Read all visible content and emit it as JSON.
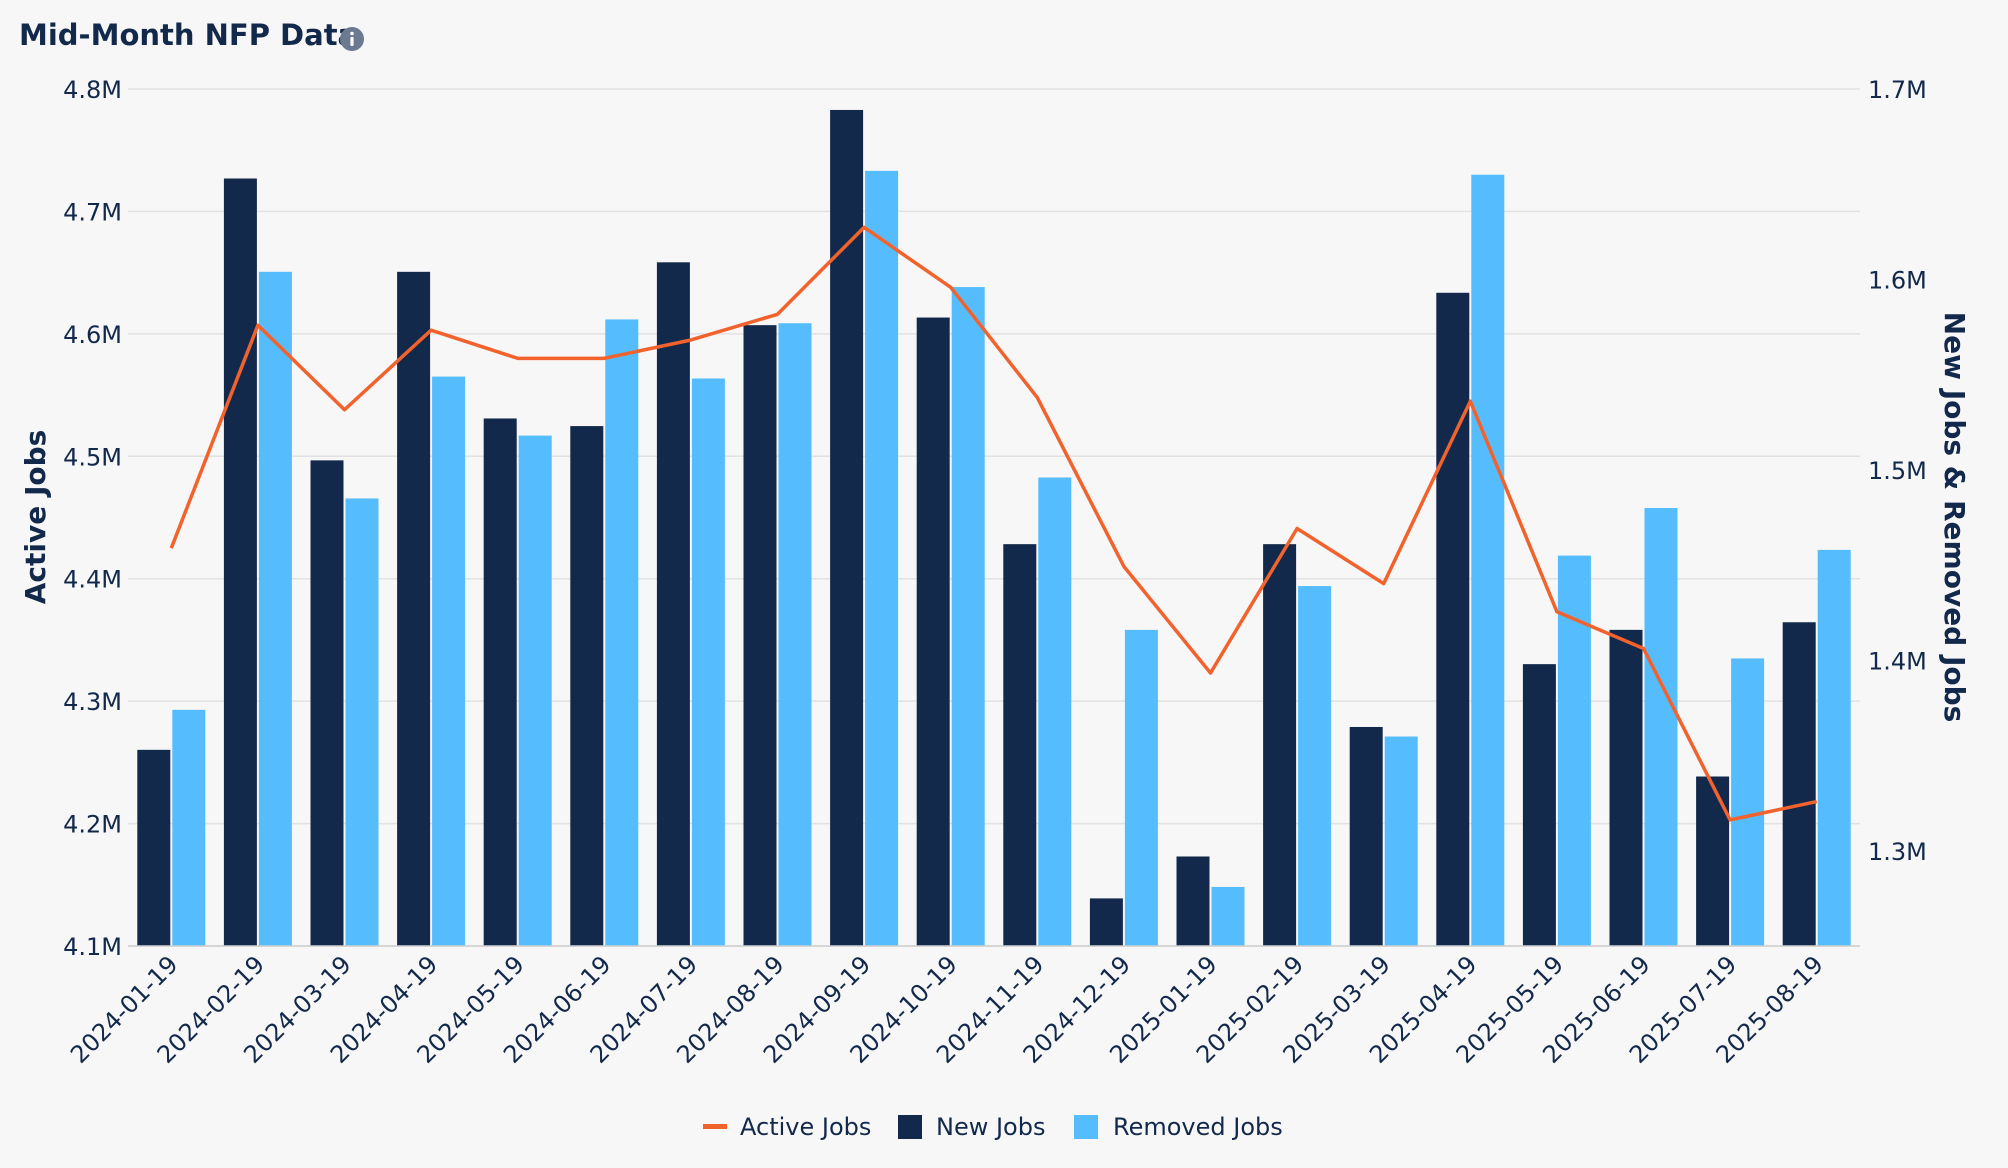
{
  "title": "Mid-Month NFP Data",
  "info_icon": "info-circle-icon",
  "colors": {
    "active": "#f2622d",
    "new": "#13294b",
    "removed": "#55bdfd",
    "grid": "#e2e2e2",
    "text": "#13294b",
    "background": "#f7f7f7"
  },
  "chart_data": {
    "type": "bar",
    "title": "Mid-Month NFP Data",
    "categories": [
      "2024-01-19",
      "2024-02-19",
      "2024-03-19",
      "2024-04-19",
      "2024-05-19",
      "2024-06-19",
      "2024-07-19",
      "2024-08-19",
      "2024-09-19",
      "2024-10-19",
      "2024-11-19",
      "2024-12-19",
      "2025-01-19",
      "2025-02-19",
      "2025-03-19",
      "2025-04-19",
      "2025-05-19",
      "2025-06-19",
      "2025-07-19",
      "2025-08-19"
    ],
    "y_left": {
      "label": "Active Jobs",
      "min": 4.1,
      "max": 4.8,
      "ticks": [
        4.1,
        4.2,
        4.3,
        4.4,
        4.5,
        4.6,
        4.7,
        4.8
      ],
      "tick_labels": [
        "4.1M",
        "4.2M",
        "4.3M",
        "4.4M",
        "4.5M",
        "4.6M",
        "4.7M",
        "4.8M"
      ]
    },
    "y_right": {
      "label": "New Jobs & Removed Jobs",
      "min": 1.25,
      "max": 1.7,
      "ticks": [
        1.3,
        1.4,
        1.5,
        1.6,
        1.7
      ],
      "tick_labels": [
        "1.3M",
        "1.4M",
        "1.5M",
        "1.6M",
        "1.7M"
      ]
    },
    "series": [
      {
        "name": "Active Jobs",
        "type": "line",
        "axis": "left",
        "unit": "M",
        "values": [
          4.425,
          4.607,
          4.538,
          4.603,
          4.58,
          4.58,
          4.595,
          4.616,
          4.687,
          4.638,
          4.548,
          4.41,
          4.323,
          4.441,
          4.396,
          4.545,
          4.373,
          4.343,
          4.203,
          4.218
        ]
      },
      {
        "name": "New Jobs",
        "type": "bar",
        "axis": "right",
        "unit": "M",
        "values": [
          1.353,
          1.653,
          1.505,
          1.604,
          1.527,
          1.523,
          1.609,
          1.576,
          1.689,
          1.58,
          1.461,
          1.275,
          1.297,
          1.461,
          1.365,
          1.593,
          1.398,
          1.416,
          1.339,
          1.42
        ]
      },
      {
        "name": "Removed Jobs",
        "type": "bar",
        "axis": "right",
        "unit": "M",
        "values": [
          1.374,
          1.604,
          1.485,
          1.549,
          1.518,
          1.579,
          1.548,
          1.577,
          1.657,
          1.596,
          1.496,
          1.416,
          1.281,
          1.439,
          1.36,
          1.655,
          1.455,
          1.48,
          1.401,
          1.458
        ]
      }
    ],
    "legend": {
      "position": "bottom-center",
      "entries": [
        "Active Jobs",
        "New Jobs",
        "Removed Jobs"
      ]
    },
    "grid": true
  }
}
